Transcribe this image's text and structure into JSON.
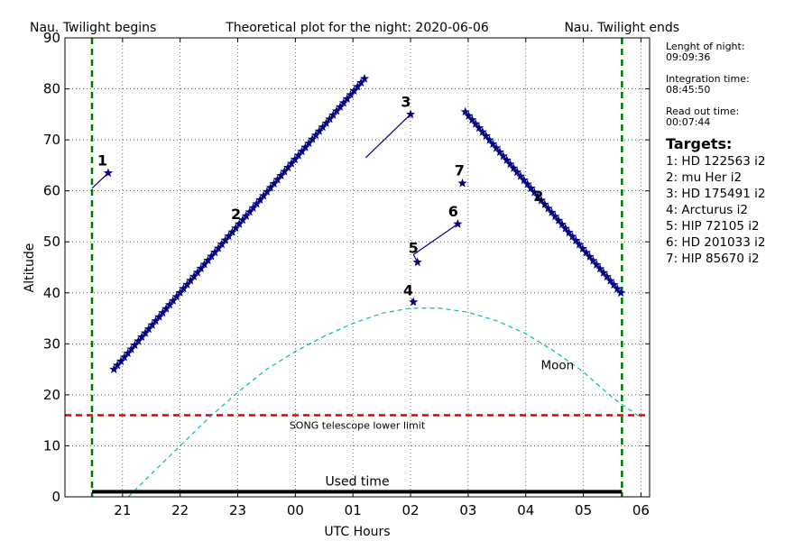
{
  "chart_data": {
    "type": "line",
    "title": "Theoretical plot for the night: 2020-06-06",
    "xlabel": "UTC Hours",
    "ylabel": "Altitude",
    "xlim": [
      20,
      30.15
    ],
    "ylim": [
      0,
      90
    ],
    "x_ticks": [
      21,
      22,
      23,
      24,
      25,
      26,
      27,
      28,
      29,
      30
    ],
    "x_tick_labels": [
      "21",
      "22",
      "23",
      "00",
      "01",
      "02",
      "03",
      "04",
      "05",
      "06"
    ],
    "y_ticks": [
      0,
      10,
      20,
      30,
      40,
      50,
      60,
      70,
      80,
      90
    ],
    "y_tick_labels": [
      "0",
      "10",
      "20",
      "30",
      "40",
      "50",
      "60",
      "70",
      "80",
      "90"
    ],
    "grid": true,
    "twilight_begin": {
      "label": "Nau. Twilight begins",
      "x": 20.47
    },
    "twilight_end": {
      "label": "Nau. Twilight ends",
      "x": 29.67
    },
    "lower_limit": {
      "label": "SONG telescope lower limit",
      "y": 16
    },
    "used_time": {
      "label": "Used time",
      "x": [
        20.47,
        29.67
      ],
      "y": 1
    },
    "moon": {
      "label": "Moon",
      "x": [
        21.1,
        21.5,
        22.0,
        22.5,
        23.0,
        23.5,
        24.0,
        24.5,
        25.0,
        25.5,
        26.0,
        26.5,
        27.0,
        27.5,
        28.0,
        28.5,
        29.0,
        29.5,
        30.0
      ],
      "y": [
        0,
        4.5,
        10,
        15.5,
        20.5,
        25,
        28.5,
        31.5,
        34,
        36,
        37,
        37,
        36.2,
        34.5,
        32,
        28.5,
        24.5,
        19.5,
        15.5
      ]
    },
    "targets": [
      {
        "num": "1",
        "x": [
          20.47,
          20.75
        ],
        "y": [
          60.5,
          63.5
        ],
        "marker_step": 0,
        "label_x": 20.65,
        "label_y": 65
      },
      {
        "num": "2",
        "x": [
          20.85,
          25.2
        ],
        "y": [
          25,
          82
        ],
        "marker_step": 0.06,
        "label_x": 22.97,
        "label_y": 54.5
      },
      {
        "num": "3",
        "x": [
          25.22,
          26.0
        ],
        "y": [
          66.5,
          75
        ],
        "marker_step": 0,
        "label_x": 25.92,
        "label_y": 76.5
      },
      {
        "num": "4",
        "x": [
          26.02,
          26.05
        ],
        "y": [
          38.8,
          38.2
        ],
        "marker_step": 0,
        "label_x": 25.96,
        "label_y": 39.5
      },
      {
        "num": "5",
        "x": [
          26.05,
          26.12
        ],
        "y": [
          47.5,
          46
        ],
        "marker_step": 0,
        "label_x": 26.05,
        "label_y": 47.8
      },
      {
        "num": "6",
        "x": [
          26.05,
          26.82
        ],
        "y": [
          47.5,
          53.5
        ],
        "marker_step": 0,
        "label_x": 26.74,
        "label_y": 55
      },
      {
        "num": "7",
        "x": [
          26.9
        ],
        "y": [
          61.5
        ],
        "marker_step": 0,
        "label_x": 26.85,
        "label_y": 63
      },
      {
        "num": "2",
        "x": [
          26.95,
          29.65
        ],
        "y": [
          75.5,
          40
        ],
        "marker_step": 0.06,
        "label_x": 28.22,
        "label_y": 58
      }
    ]
  },
  "info": [
    {
      "label": "Lenght of night:",
      "value": "09:09:36"
    },
    {
      "label": "Integration time:",
      "value": "08:45:50"
    },
    {
      "label": "Read out time:",
      "value": "00:07:44"
    }
  ],
  "targets_title": "Targets:",
  "targets_list": [
    "1: HD 122563 i2",
    "2: mu Her i2",
    "3: HD 175491 i2",
    "4: Arcturus i2",
    "5: HIP 72105 i2",
    "6: HD 201033 i2",
    "7: HIP 85670 i2"
  ],
  "colors": {
    "target_line": "#000080",
    "twilight": "#007700",
    "limit": "#dd0000",
    "moon": "#00bbbb",
    "grid": "#000000"
  }
}
